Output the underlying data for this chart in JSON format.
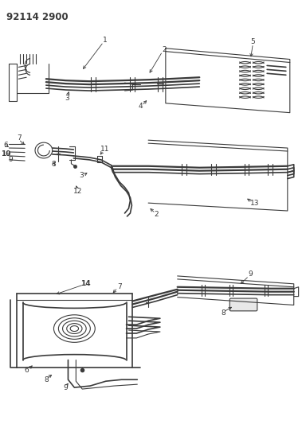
{
  "title": "92114 2900",
  "bg_color": "#ffffff",
  "line_color": "#3a3a3a",
  "title_fontsize": 8.5,
  "label_fontsize": 6.5,
  "fig_width": 3.79,
  "fig_height": 5.33,
  "dpi": 100
}
